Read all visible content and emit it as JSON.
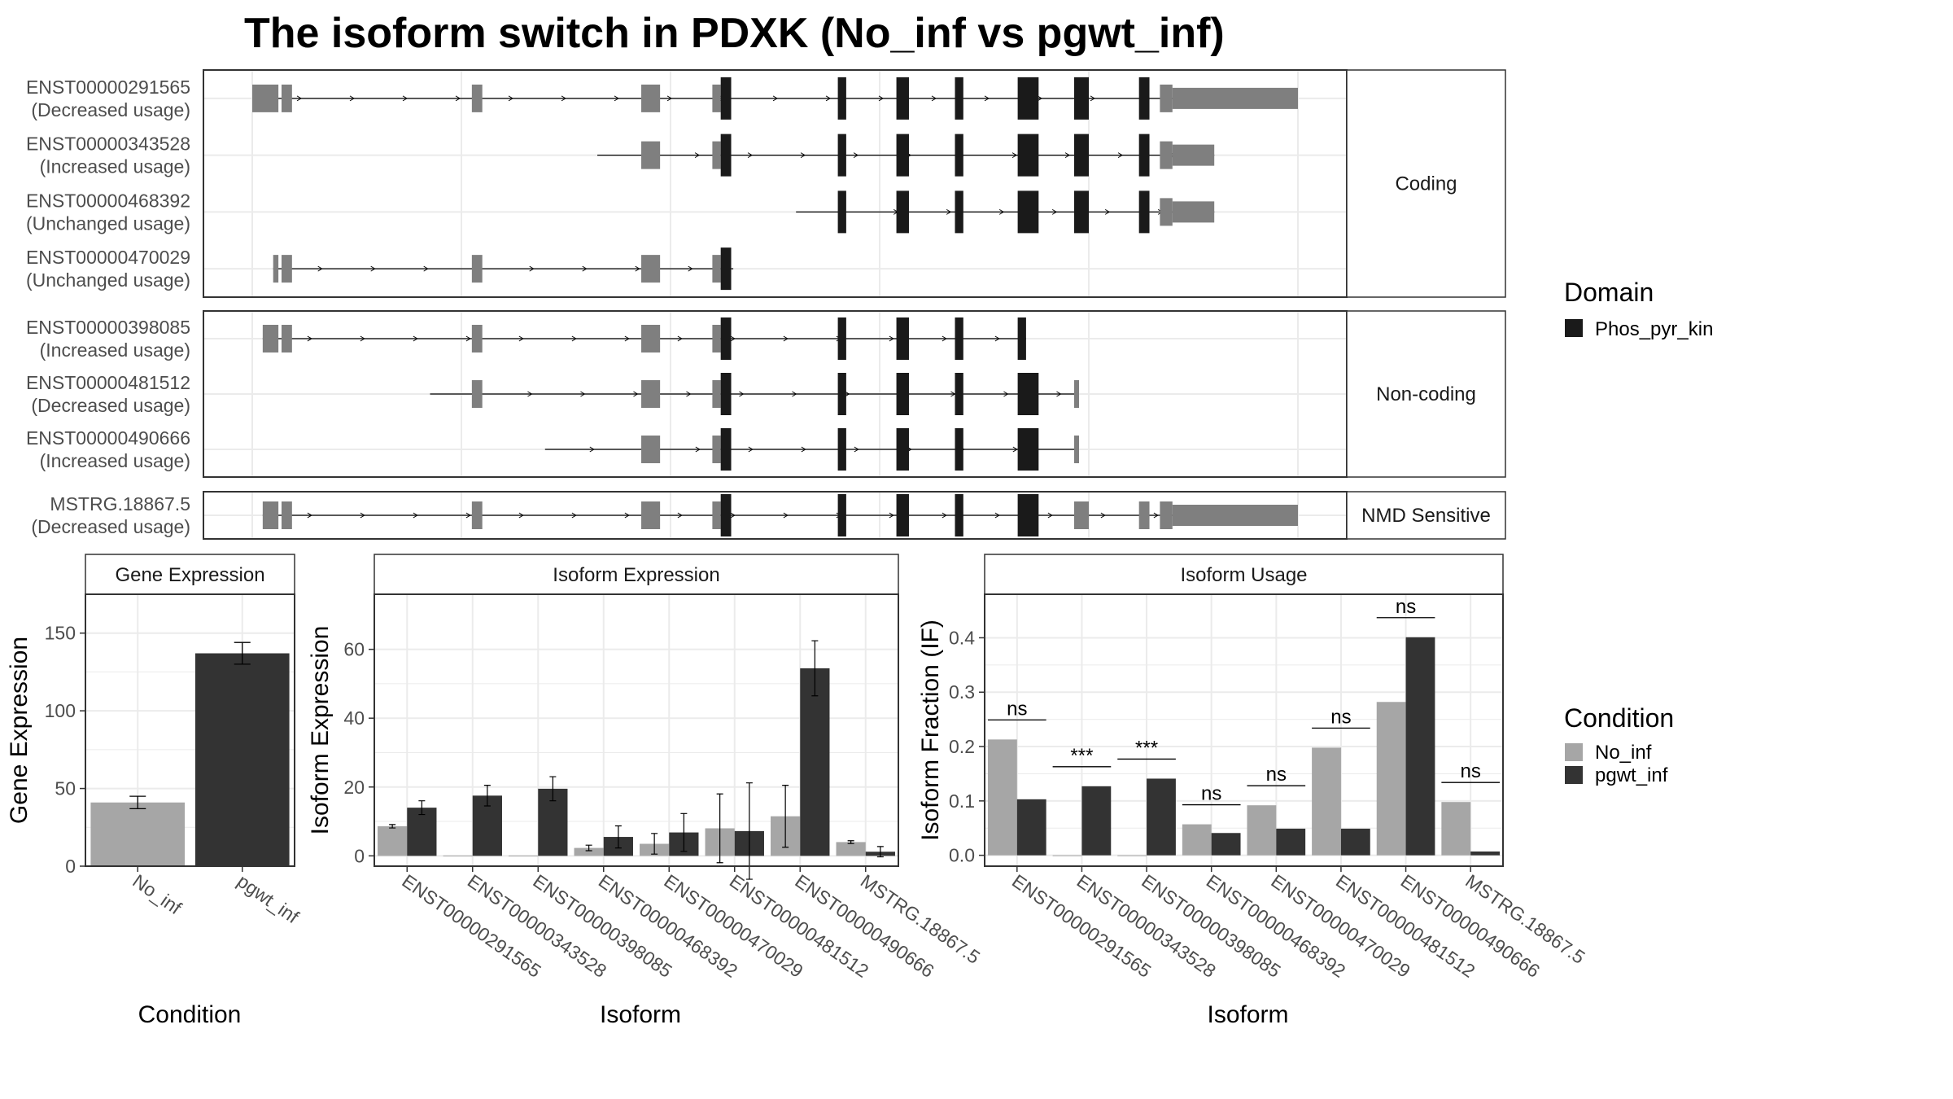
{
  "title": "The isoform switch in PDXK (No_inf vs pgwt_inf)",
  "colors": {
    "utr": "#7f7f7f",
    "domain": "#1a1a1a",
    "no_inf": "#a6a6a6",
    "pgwt_inf": "#333333",
    "grid": "#ebebeb",
    "strip_bg": "#ffffff"
  },
  "domain_legend": {
    "title": "Domain",
    "items": [
      "Phos_pyr_kin"
    ]
  },
  "condition_legend": {
    "title": "Condition",
    "items": [
      "No_inf",
      "pgwt_inf"
    ]
  },
  "structure": {
    "groups": [
      {
        "label": "Coding",
        "transcripts": [
          {
            "id": "ENST00000291565",
            "usage": "(Decreased usage)",
            "start": 0.0,
            "end": 1.0,
            "utr5_end": 0.33,
            "utr3_start": 0.92
          },
          {
            "id": "ENST00000343528",
            "usage": "(Increased usage)",
            "start": 0.33,
            "end": 0.92,
            "utr5_end": 0.41,
            "utr3_start": 0.92
          },
          {
            "id": "ENST00000468392",
            "usage": "(Unchanged usage)",
            "start": 0.52,
            "end": 0.92,
            "utr5_end": 0.58,
            "utr3_start": 0.92
          },
          {
            "id": "ENST00000470029",
            "usage": "(Unchanged usage)",
            "start": 0.02,
            "end": 0.46,
            "utr5_end": 0.46,
            "utr3_start": 0.46
          }
        ]
      },
      {
        "label": "Non-coding",
        "transcripts": [
          {
            "id": "ENST00000398085",
            "usage": "(Increased usage)",
            "start": 0.01,
            "end": 0.74
          },
          {
            "id": "ENST00000481512",
            "usage": "(Decreased usage)",
            "start": 0.17,
            "end": 0.79
          },
          {
            "id": "ENST00000490666",
            "usage": "(Increased usage)",
            "start": 0.28,
            "end": 0.79
          }
        ]
      },
      {
        "label": "NMD Sensitive",
        "transcripts": [
          {
            "id": "MSTRG.18867.5",
            "usage": "(Decreased usage)",
            "start": 0.01,
            "end": 1.0
          }
        ]
      }
    ]
  },
  "chart_data": [
    {
      "type": "bar",
      "panel": "Gene Expression",
      "categories": [
        "No_inf",
        "pgwt_inf"
      ],
      "values": [
        41,
        137
      ],
      "errors": [
        4,
        7
      ],
      "xlabel": "Condition",
      "ylabel": "Gene Expression",
      "ylim": [
        0,
        175
      ],
      "yticks": [
        0,
        50,
        100,
        150
      ]
    },
    {
      "type": "bar",
      "panel": "Isoform Expression",
      "categories": [
        "ENST00000291565",
        "ENST00000343528",
        "ENST00000398085",
        "ENST00000468392",
        "ENST00000470029",
        "ENST00000481512",
        "ENST00000490666",
        "MSTRG.18867.5"
      ],
      "series": [
        {
          "name": "No_inf",
          "values": [
            8.6,
            0.1,
            0.1,
            2.3,
            3.5,
            8.0,
            11.5,
            4.0
          ],
          "errors": [
            0.5,
            0,
            0,
            0.8,
            3.0,
            10.0,
            9.0,
            0.4
          ]
        },
        {
          "name": "pgwt_inf",
          "values": [
            14.0,
            17.5,
            19.5,
            5.5,
            6.8,
            7.2,
            54.5,
            1.2
          ],
          "errors": [
            2.0,
            3.0,
            3.5,
            3.2,
            5.5,
            14.0,
            8.0,
            1.5
          ]
        }
      ],
      "xlabel": "Isoform",
      "ylabel": "Isoform Expression",
      "ylim": [
        -3,
        76
      ],
      "yticks": [
        0,
        20,
        40,
        60
      ]
    },
    {
      "type": "bar",
      "panel": "Isoform Usage",
      "categories": [
        "ENST00000291565",
        "ENST00000343528",
        "ENST00000398085",
        "ENST00000468392",
        "ENST00000470029",
        "ENST00000481512",
        "ENST00000490666",
        "MSTRG.18867.5"
      ],
      "series": [
        {
          "name": "No_inf",
          "values": [
            0.213,
            0.0,
            0.0,
            0.057,
            0.092,
            0.198,
            0.282,
            0.098
          ]
        },
        {
          "name": "pgwt_inf",
          "values": [
            0.103,
            0.127,
            0.141,
            0.041,
            0.049,
            0.049,
            0.401,
            0.007
          ]
        }
      ],
      "significance": [
        "ns",
        "***",
        "***",
        "ns",
        "ns",
        "ns",
        "ns",
        "ns"
      ],
      "xlabel": "Isoform",
      "ylabel": "Isoform Fraction (IF)",
      "ylim": [
        -0.02,
        0.48
      ],
      "yticks": [
        0.0,
        0.1,
        0.2,
        0.3,
        0.4
      ]
    }
  ]
}
